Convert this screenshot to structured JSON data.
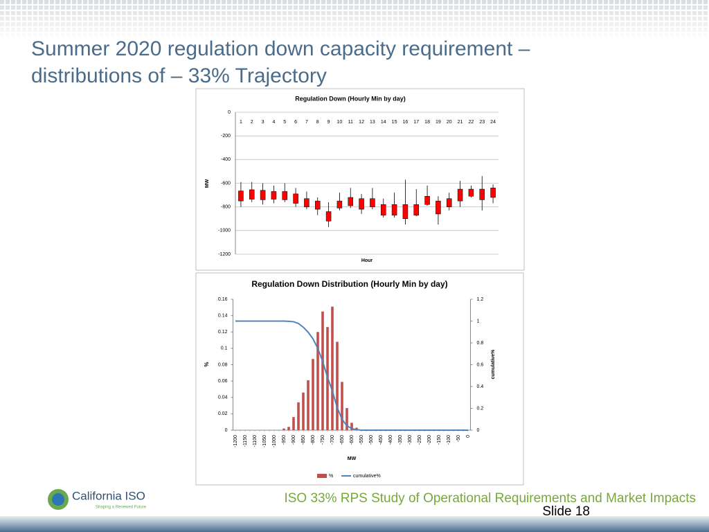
{
  "slide": {
    "title_lines": [
      "Summer 2020 regulation down capacity requirement –",
      "distributions of – 33% Trajectory"
    ],
    "logo_name": "California ISO",
    "logo_tagline": "Shaping a Renewed Future",
    "footer": "ISO 33% RPS Study of Operational Requirements and Market Impacts",
    "slide_number": "Slide 18"
  },
  "chart_data": [
    {
      "type": "candlestick",
      "title": "Regulation Down (Hourly Min by day)",
      "x_label": "Hour",
      "y_label": "MW",
      "categories": [
        1,
        2,
        3,
        4,
        5,
        6,
        7,
        8,
        9,
        10,
        11,
        12,
        13,
        14,
        15,
        16,
        17,
        18,
        19,
        20,
        21,
        22,
        23,
        24
      ],
      "whisker_top": [
        -590,
        -590,
        -600,
        -620,
        -600,
        -640,
        -670,
        -720,
        -760,
        -680,
        -640,
        -690,
        -640,
        -730,
        -680,
        -570,
        -650,
        -620,
        -710,
        -680,
        -580,
        -620,
        -540,
        -610
      ],
      "box_top": [
        -665,
        -655,
        -660,
        -670,
        -670,
        -690,
        -730,
        -750,
        -840,
        -750,
        -720,
        -730,
        -730,
        -780,
        -780,
        -780,
        -780,
        -710,
        -750,
        -730,
        -650,
        -650,
        -650,
        -640
      ],
      "box_bottom": [
        -750,
        -735,
        -740,
        -735,
        -740,
        -770,
        -800,
        -820,
        -920,
        -810,
        -790,
        -820,
        -800,
        -870,
        -870,
        -900,
        -870,
        -780,
        -860,
        -800,
        -750,
        -710,
        -740,
        -720
      ],
      "whisker_bottom": [
        -800,
        -760,
        -780,
        -770,
        -760,
        -800,
        -820,
        -870,
        -970,
        -830,
        -810,
        -860,
        -820,
        -890,
        -890,
        -950,
        -880,
        -790,
        -950,
        -830,
        -800,
        -720,
        -830,
        -770
      ],
      "color": "#ff0000",
      "ylim": [
        -1200,
        0
      ],
      "yticks": [
        0,
        -200,
        -400,
        -600,
        -800,
        -1000,
        -1200
      ],
      "grid": true
    },
    {
      "type": "bar_line",
      "title": "Regulation Down Distribution (Hourly Min by day)",
      "x_label": "MW",
      "y_label": "%",
      "y2_label": "cumulative%",
      "categories": [
        "-1200",
        null,
        "-1150",
        null,
        "-1100",
        null,
        "-1050",
        null,
        "-1000",
        null,
        "-950",
        null,
        "-900",
        null,
        "-850",
        null,
        "-800",
        null,
        "-750",
        null,
        "-700",
        null,
        "-650",
        null,
        "-600",
        null,
        "-550",
        null,
        "-500",
        null,
        "-450",
        null,
        "-400",
        null,
        "-350",
        null,
        "-300",
        null,
        "-250",
        null,
        "-200",
        null,
        "-150",
        null,
        "-100",
        null,
        "-50",
        null,
        "0"
      ],
      "series": [
        {
          "name": "%",
          "color": "#c0504d",
          "values": [
            0,
            0,
            0,
            0,
            0,
            0,
            0,
            0,
            0,
            0,
            0.002,
            0.004,
            0.016,
            0.034,
            0.046,
            0.061,
            0.087,
            0.12,
            0.145,
            0.126,
            0.151,
            0.108,
            0.059,
            0.027,
            0.009,
            0.003,
            0,
            0,
            0,
            0,
            0,
            0,
            0,
            0,
            0,
            0,
            0,
            0,
            0,
            0,
            0,
            0,
            0,
            0,
            0,
            0,
            0,
            0,
            0
          ]
        },
        {
          "name": "cumulative%",
          "color": "#4f81bd",
          "axis": "y2",
          "values": [
            1,
            1,
            1,
            1,
            1,
            1,
            1,
            1,
            1,
            1,
            1,
            0.998,
            0.994,
            0.978,
            0.944,
            0.898,
            0.837,
            0.75,
            0.63,
            0.485,
            0.359,
            0.208,
            0.1,
            0.041,
            0.014,
            0.005,
            0,
            0,
            0,
            0,
            0,
            0,
            0,
            0,
            0,
            0,
            0,
            0,
            0,
            0,
            0,
            0,
            0,
            0,
            0,
            0,
            0,
            0,
            0
          ]
        }
      ],
      "ylim": [
        0,
        0.16
      ],
      "yticks": [
        0,
        0.02,
        0.04,
        0.06,
        0.08,
        0.1,
        0.12,
        0.14,
        0.16
      ],
      "y2lim": [
        0,
        1.2
      ],
      "y2ticks": [
        0,
        0.2,
        0.4,
        0.6,
        0.8,
        1,
        1.2
      ],
      "legend": "bottom"
    }
  ]
}
